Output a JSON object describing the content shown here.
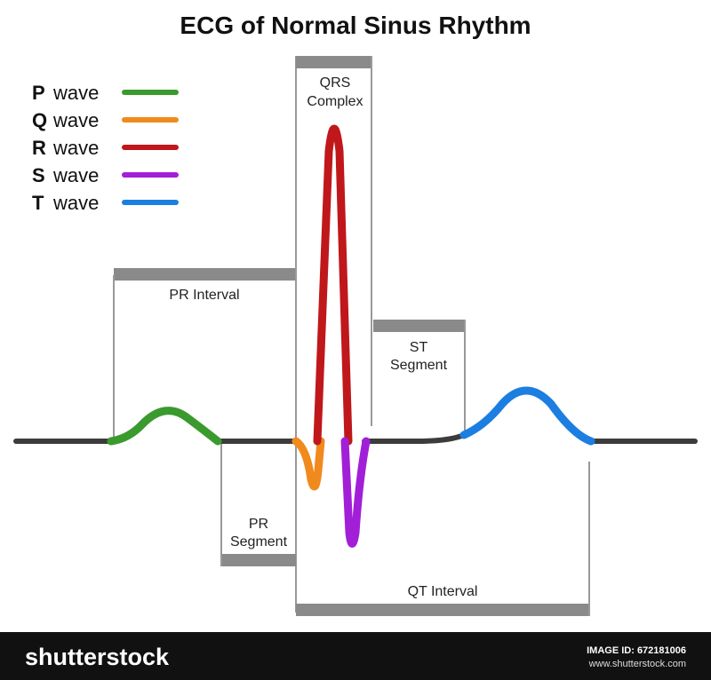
{
  "title": "ECG of Normal Sinus Rhythm",
  "legend": [
    {
      "letter": "P",
      "text": "wave",
      "color": "#3a9a2e"
    },
    {
      "letter": "Q",
      "text": "wave",
      "color": "#f08a1c"
    },
    {
      "letter": "R",
      "text": "wave",
      "color": "#c0171b"
    },
    {
      "letter": "S",
      "text": "wave",
      "color": "#a21fd8"
    },
    {
      "letter": "T",
      "text": "wave",
      "color": "#1c7ee0"
    }
  ],
  "labels": {
    "pr_interval": [
      "PR Interval"
    ],
    "qrs_complex": [
      "QRS",
      "Complex"
    ],
    "st_segment": [
      "ST",
      "Segment"
    ],
    "pr_segment": [
      "PR",
      "Segment"
    ],
    "qt_interval": [
      "QT Interval"
    ]
  },
  "footer": {
    "brand": "shutterstock",
    "image_id": "IMAGE ID: 672181006",
    "site": "www.shutterstock.com"
  }
}
